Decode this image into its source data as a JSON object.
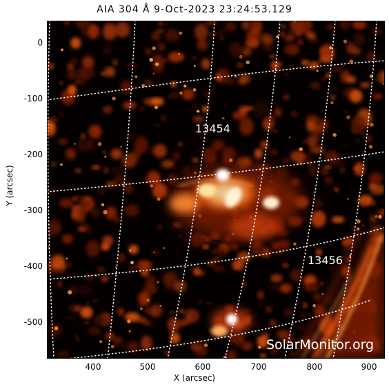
{
  "title": "AIA 304 Å  9-Oct-2023 23:24:53.129",
  "xlabel": "X (arcsec)",
  "ylabel": "Y (arcsec)",
  "x_ticks": [
    "400",
    "500",
    "600",
    "700",
    "800",
    "900"
  ],
  "y_ticks": [
    "0",
    "-100",
    "-200",
    "-300",
    "-400",
    "-500"
  ],
  "regions": [
    "13454",
    "13456"
  ],
  "watermark": "SolarMonitor.org",
  "colors": {
    "background": "#050000",
    "emission": "#ff6a10",
    "bright": "#fff6d0",
    "grid": "#ffffff"
  }
}
